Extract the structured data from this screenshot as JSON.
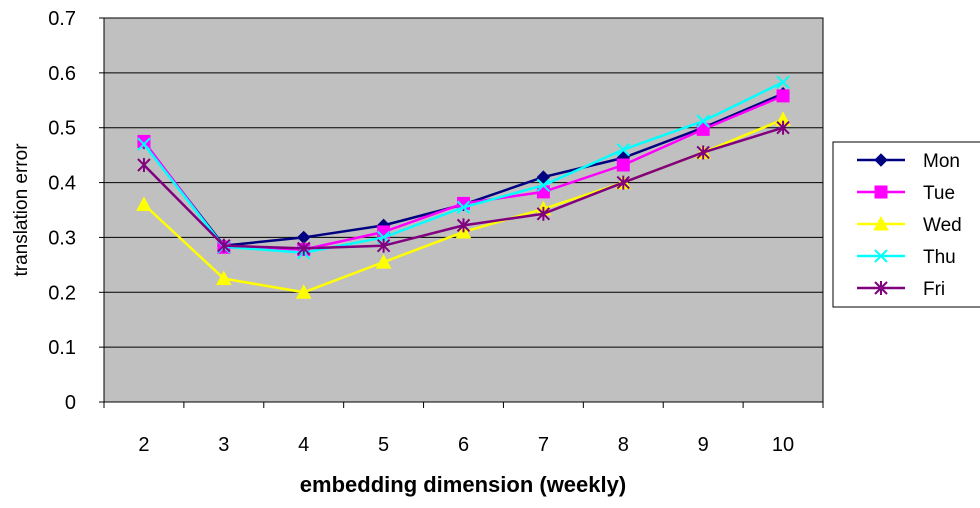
{
  "chart_data": {
    "type": "line",
    "title": "",
    "xlabel": "embedding dimension (weekly)",
    "ylabel": "translation error",
    "categories": [
      "2",
      "3",
      "4",
      "5",
      "6",
      "7",
      "8",
      "9",
      "10"
    ],
    "ylim": [
      0,
      0.7
    ],
    "yticks": [
      "0",
      "0.1",
      "0.2",
      "0.3",
      "0.4",
      "0.5",
      "0.6",
      "0.7"
    ],
    "grid": "horizontal",
    "plot_background": "#c0c0c0",
    "legend_position": "right",
    "series": [
      {
        "name": "Mon",
        "color": "#000080",
        "marker": "diamond",
        "values": [
          0.473,
          0.285,
          0.3,
          0.322,
          0.36,
          0.41,
          0.445,
          0.5,
          0.562
        ]
      },
      {
        "name": "Tue",
        "color": "#ff00ff",
        "marker": "square",
        "values": [
          0.475,
          0.282,
          0.278,
          0.31,
          0.362,
          0.383,
          0.432,
          0.497,
          0.558
        ]
      },
      {
        "name": "Wed",
        "color": "#ffff00",
        "marker": "triangle",
        "values": [
          0.36,
          0.225,
          0.2,
          0.255,
          0.31,
          0.352,
          0.4,
          0.455,
          0.515
        ]
      },
      {
        "name": "Thu",
        "color": "#00ffff",
        "marker": "x",
        "values": [
          0.47,
          0.283,
          0.272,
          0.3,
          0.355,
          0.395,
          0.46,
          0.512,
          0.583
        ]
      },
      {
        "name": "Fri",
        "color": "#800080",
        "marker": "asterisk",
        "values": [
          0.432,
          0.285,
          0.28,
          0.285,
          0.322,
          0.343,
          0.4,
          0.455,
          0.5
        ]
      }
    ]
  }
}
